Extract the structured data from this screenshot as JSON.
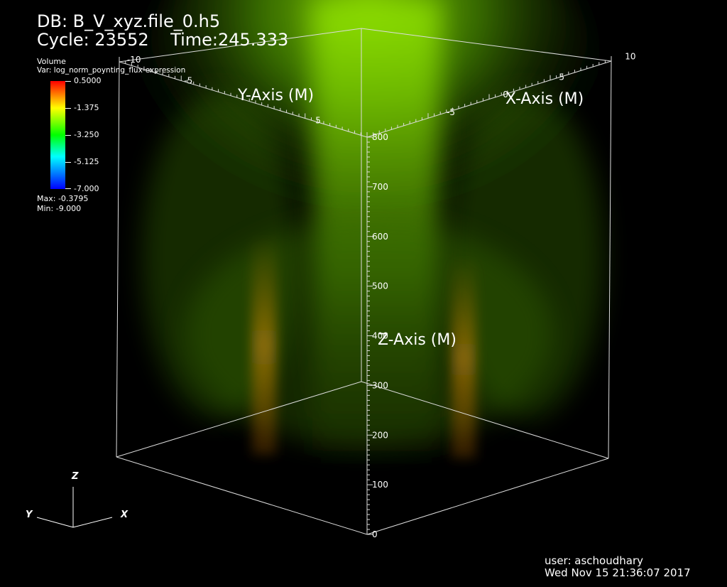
{
  "header": {
    "db": "DB: B_V_xyz.file_0.h5",
    "cycle": "Cycle: 23552    Time:245.333"
  },
  "legend": {
    "title": "Volume",
    "var": "Var: log_norm_poynting_flux-expression",
    "ticks": [
      "0.5000",
      "-1.375",
      "-3.250",
      "-5.125",
      "-7.000"
    ],
    "max": "Max: -0.3795",
    "min": "Min: -9.000"
  },
  "axes": {
    "x_title": "X-Axis (M)",
    "y_title": "Y-Axis (M)",
    "z_title": "Z-Axis (M)",
    "z_ticks": [
      "0",
      "100",
      "200",
      "300",
      "400",
      "500",
      "600",
      "700",
      "800"
    ],
    "x_ticks": [
      "-5",
      "0",
      "5",
      "10"
    ],
    "y_ticks": [
      "-10",
      "-5",
      "5"
    ]
  },
  "triad": {
    "x": "X",
    "y": "Y",
    "z": "Z"
  },
  "footer": {
    "user": "user: aschoudhary",
    "date": "Wed Nov 15 21:36:07 2017"
  },
  "colors": {
    "volume": "#7fd400",
    "accent": "#ff8a00"
  }
}
